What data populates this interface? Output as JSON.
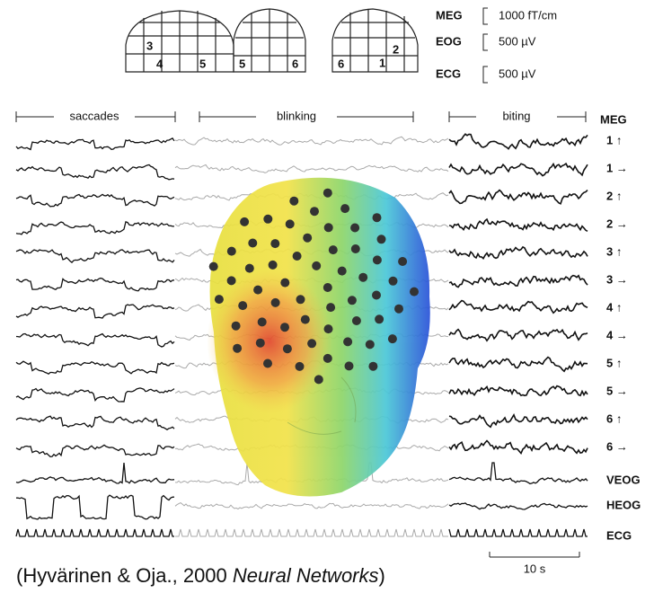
{
  "helmets": [
    {
      "numbers": [
        "3",
        "4",
        "5"
      ]
    },
    {
      "numbers": [
        "5",
        "6"
      ]
    },
    {
      "numbers": [
        "6",
        "2",
        "1"
      ]
    }
  ],
  "scale_bars": [
    {
      "label": "MEG",
      "value": "1000 fT/cm"
    },
    {
      "label": "EOG",
      "value": "500 µV"
    },
    {
      "label": "ECG",
      "value": "500 µV"
    }
  ],
  "segments": [
    "saccades",
    "blinking",
    "biting"
  ],
  "channel_header": "MEG",
  "channels": [
    "1 ↑",
    "1 →",
    "2 ↑",
    "2 →",
    "3 ↑",
    "3 →",
    "4 ↑",
    "4 →",
    "5 ↑",
    "5 →",
    "6 ↑",
    "6 →",
    "VEOG",
    "HEOG",
    "ECG"
  ],
  "time_scale": "10 s",
  "citation": {
    "prefix": "(Hyvärinen & Oja., 2000 ",
    "journal": "Neural Networks",
    "suffix": ")"
  }
}
